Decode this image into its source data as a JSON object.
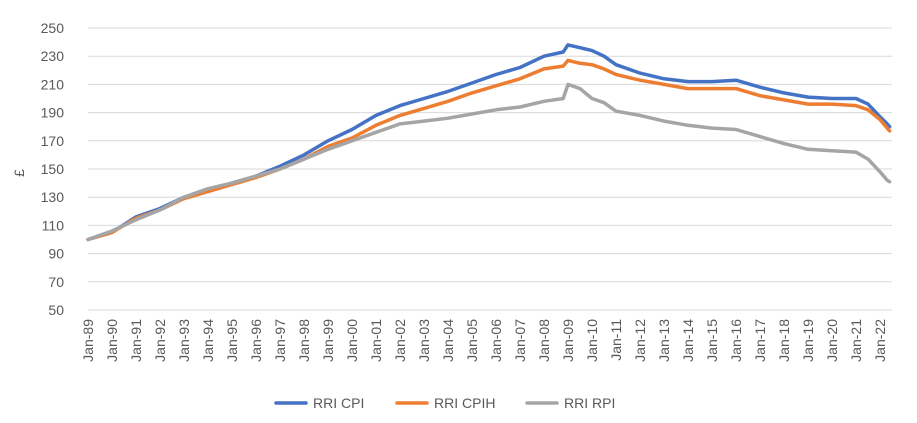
{
  "chart_data": {
    "type": "line",
    "ylabel": "£",
    "ylim": [
      50,
      250
    ],
    "yticks": [
      50,
      70,
      90,
      110,
      130,
      150,
      170,
      190,
      210,
      230,
      250
    ],
    "xlim": [
      1989.0,
      2022.5
    ],
    "xticks": [
      {
        "label": "Jan-89",
        "x": 1989.0
      },
      {
        "label": "Jan-90",
        "x": 1990.0
      },
      {
        "label": "Jan-91",
        "x": 1991.0
      },
      {
        "label": "Jan-92",
        "x": 1992.0
      },
      {
        "label": "Jan-93",
        "x": 1993.0
      },
      {
        "label": "Jan-94",
        "x": 1994.0
      },
      {
        "label": "Jan-95",
        "x": 1995.0
      },
      {
        "label": "Jan-96",
        "x": 1996.0
      },
      {
        "label": "Jan-97",
        "x": 1997.0
      },
      {
        "label": "Jan-98",
        "x": 1998.0
      },
      {
        "label": "Jan-99",
        "x": 1999.0
      },
      {
        "label": "Jan-00",
        "x": 2000.0
      },
      {
        "label": "Jan-01",
        "x": 2001.0
      },
      {
        "label": "Jan-02",
        "x": 2002.0
      },
      {
        "label": "Jan-03",
        "x": 2003.0
      },
      {
        "label": "Jan-04",
        "x": 2004.0
      },
      {
        "label": "Jan-05",
        "x": 2005.0
      },
      {
        "label": "Jan-06",
        "x": 2006.0
      },
      {
        "label": "Jan-07",
        "x": 2007.0
      },
      {
        "label": "Jan-08",
        "x": 2008.0
      },
      {
        "label": "Jan-09",
        "x": 2009.0
      },
      {
        "label": "Jan-10",
        "x": 2010.0
      },
      {
        "label": "Jan-11",
        "x": 2011.0
      },
      {
        "label": "Jan-12",
        "x": 2012.0
      },
      {
        "label": "Jan-13",
        "x": 2013.0
      },
      {
        "label": "Jan-14",
        "x": 2014.0
      },
      {
        "label": "Jan-15",
        "x": 2015.0
      },
      {
        "label": "Jan-16",
        "x": 2016.0
      },
      {
        "label": "Jan-17",
        "x": 2017.0
      },
      {
        "label": "Jan-18",
        "x": 2018.0
      },
      {
        "label": "Jan-19",
        "x": 2019.0
      },
      {
        "label": "Jan-20",
        "x": 2020.0
      },
      {
        "label": "Jan-21",
        "x": 2021.0
      },
      {
        "label": "Jan-22",
        "x": 2022.0
      }
    ],
    "grid": true,
    "legend_position": "bottom",
    "series": [
      {
        "name": "RRI CPI",
        "color": "#4472c4",
        "points": [
          [
            1989.0,
            100
          ],
          [
            1990.0,
            105
          ],
          [
            1991.0,
            116
          ],
          [
            1992.0,
            122
          ],
          [
            1993.0,
            130
          ],
          [
            1994.0,
            135
          ],
          [
            1995.0,
            140
          ],
          [
            1996.0,
            145
          ],
          [
            1997.0,
            152
          ],
          [
            1998.0,
            160
          ],
          [
            1999.0,
            170
          ],
          [
            2000.0,
            178
          ],
          [
            2001.0,
            188
          ],
          [
            2002.0,
            195
          ],
          [
            2003.0,
            200
          ],
          [
            2004.0,
            205
          ],
          [
            2005.0,
            211
          ],
          [
            2006.0,
            217
          ],
          [
            2007.0,
            222
          ],
          [
            2008.0,
            230
          ],
          [
            2008.8,
            233
          ],
          [
            2009.0,
            238
          ],
          [
            2009.5,
            236
          ],
          [
            2010.0,
            234
          ],
          [
            2010.5,
            230
          ],
          [
            2011.0,
            224
          ],
          [
            2012.0,
            218
          ],
          [
            2013.0,
            214
          ],
          [
            2014.0,
            212
          ],
          [
            2015.0,
            212
          ],
          [
            2016.0,
            213
          ],
          [
            2017.0,
            208
          ],
          [
            2018.0,
            204
          ],
          [
            2019.0,
            201
          ],
          [
            2020.0,
            200
          ],
          [
            2021.0,
            200
          ],
          [
            2021.5,
            196
          ],
          [
            2022.0,
            187
          ],
          [
            2022.3,
            182
          ],
          [
            2022.4,
            180
          ]
        ]
      },
      {
        "name": "RRI CPIH",
        "color": "#ed7d31",
        "points": [
          [
            1989.0,
            100
          ],
          [
            1990.0,
            105
          ],
          [
            1991.0,
            115
          ],
          [
            1992.0,
            121
          ],
          [
            1993.0,
            129
          ],
          [
            1994.0,
            134
          ],
          [
            1995.0,
            139
          ],
          [
            1996.0,
            144
          ],
          [
            1997.0,
            150
          ],
          [
            1998.0,
            157
          ],
          [
            1999.0,
            166
          ],
          [
            2000.0,
            172
          ],
          [
            2001.0,
            181
          ],
          [
            2002.0,
            188
          ],
          [
            2003.0,
            193
          ],
          [
            2004.0,
            198
          ],
          [
            2005.0,
            204
          ],
          [
            2006.0,
            209
          ],
          [
            2007.0,
            214
          ],
          [
            2008.0,
            221
          ],
          [
            2008.8,
            223
          ],
          [
            2009.0,
            227
          ],
          [
            2009.5,
            225
          ],
          [
            2010.0,
            224
          ],
          [
            2010.5,
            221
          ],
          [
            2011.0,
            217
          ],
          [
            2012.0,
            213
          ],
          [
            2013.0,
            210
          ],
          [
            2014.0,
            207
          ],
          [
            2015.0,
            207
          ],
          [
            2016.0,
            207
          ],
          [
            2017.0,
            202
          ],
          [
            2018.0,
            199
          ],
          [
            2019.0,
            196
          ],
          [
            2020.0,
            196
          ],
          [
            2021.0,
            195
          ],
          [
            2021.5,
            192
          ],
          [
            2022.0,
            185
          ],
          [
            2022.3,
            179
          ],
          [
            2022.4,
            177
          ]
        ]
      },
      {
        "name": "RRI RPI",
        "color": "#a5a5a5",
        "points": [
          [
            1989.0,
            100
          ],
          [
            1990.0,
            106
          ],
          [
            1991.0,
            114
          ],
          [
            1992.0,
            121
          ],
          [
            1993.0,
            130
          ],
          [
            1994.0,
            136
          ],
          [
            1995.0,
            140
          ],
          [
            1996.0,
            145
          ],
          [
            1997.0,
            150
          ],
          [
            1998.0,
            157
          ],
          [
            1999.0,
            164
          ],
          [
            2000.0,
            170
          ],
          [
            2001.0,
            176
          ],
          [
            2002.0,
            182
          ],
          [
            2003.0,
            184
          ],
          [
            2004.0,
            186
          ],
          [
            2005.0,
            189
          ],
          [
            2006.0,
            192
          ],
          [
            2007.0,
            194
          ],
          [
            2008.0,
            198
          ],
          [
            2008.8,
            200
          ],
          [
            2009.0,
            210
          ],
          [
            2009.5,
            207
          ],
          [
            2010.0,
            200
          ],
          [
            2010.5,
            197
          ],
          [
            2011.0,
            191
          ],
          [
            2012.0,
            188
          ],
          [
            2013.0,
            184
          ],
          [
            2014.0,
            181
          ],
          [
            2015.0,
            179
          ],
          [
            2016.0,
            178
          ],
          [
            2017.0,
            173
          ],
          [
            2018.0,
            168
          ],
          [
            2019.0,
            164
          ],
          [
            2020.0,
            163
          ],
          [
            2021.0,
            162
          ],
          [
            2021.5,
            157
          ],
          [
            2022.0,
            148
          ],
          [
            2022.3,
            142
          ],
          [
            2022.4,
            141
          ]
        ]
      }
    ]
  }
}
